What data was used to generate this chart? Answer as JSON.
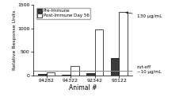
{
  "categories": [
    "94282",
    "94322",
    "92342",
    "93122"
  ],
  "pre_immune": [
    30,
    20,
    55,
    370
  ],
  "post_immune": [
    75,
    200,
    975,
    1350
  ],
  "cutoff": 100,
  "ylim": [
    0,
    1500
  ],
  "yticks": [
    0,
    500,
    1000,
    1500
  ],
  "xlabel": "Animal #",
  "ylabel": "Relative Response Units",
  "legend_pre": "Pre-Immune",
  "legend_post": "Post-Immune Day 56",
  "annotation_130": "130 μg/mL",
  "annotation_cutoff": "cut-off\n~10 μg/mL",
  "bar_width": 0.35,
  "pre_color": "#3a3a3a",
  "post_color": "#ffffff",
  "post_edgecolor": "#000000",
  "pre_edgecolor": "#000000",
  "cutoff_color": "#888888",
  "background_color": "#ffffff"
}
